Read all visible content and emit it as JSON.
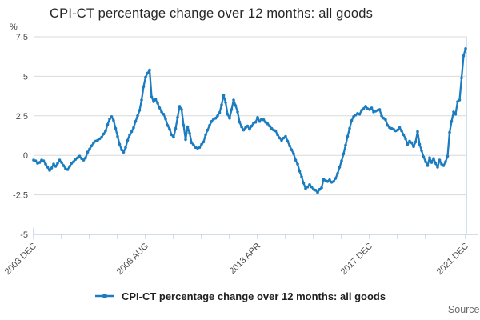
{
  "footer": {
    "source_label": "Source:"
  },
  "chart_data": {
    "type": "line",
    "title": "CPI-CT percentage change over 12 months: all goods",
    "ylabel": "%",
    "xlabel": "",
    "grid": "horizontal",
    "legend_position": "bottom-center",
    "ylim": [
      -5,
      7.5
    ],
    "y_ticks": [
      7.5,
      5,
      2.5,
      0,
      -2.5,
      -5
    ],
    "y_tick_labels": [
      "7.5",
      "5",
      "2.5",
      "0",
      "-2.5",
      "-5"
    ],
    "x_start": "2003 DEC",
    "x_end": "2021 DEC",
    "x_frequency": "monthly",
    "x_labeled_ticks": [
      {
        "month_index": 0,
        "label": "2003 DEC"
      },
      {
        "month_index": 56,
        "label": "2008 AUG"
      },
      {
        "month_index": 112,
        "label": "2013 APR"
      },
      {
        "month_index": 168,
        "label": "2017 DEC"
      },
      {
        "month_index": 216,
        "label": "2021 DEC"
      }
    ],
    "x_minor_tick_month_indices": [
      0,
      14,
      28,
      42,
      56,
      70,
      84,
      98,
      112,
      126,
      140,
      154,
      168,
      182,
      196,
      216
    ],
    "colors": {
      "line": "#1b7cc0",
      "gridline": "#d9d9d9",
      "axis": "#b9c7e0",
      "tick_label": "#4a4a4a",
      "title_text": "#262626",
      "source_text": "#6b6b6b"
    },
    "series": [
      {
        "name": "CPI-CT percentage change over 12 months: all goods",
        "color": "#1b7cc0",
        "start": "2003 DEC",
        "values": [
          -0.3,
          -0.35,
          -0.5,
          -0.45,
          -0.3,
          -0.35,
          -0.55,
          -0.75,
          -0.95,
          -0.8,
          -0.55,
          -0.7,
          -0.5,
          -0.3,
          -0.45,
          -0.65,
          -0.85,
          -0.9,
          -0.7,
          -0.5,
          -0.4,
          -0.25,
          -0.15,
          -0.05,
          -0.2,
          -0.3,
          -0.15,
          0.2,
          0.4,
          0.6,
          0.8,
          0.9,
          0.95,
          1.05,
          1.15,
          1.35,
          1.55,
          1.95,
          2.3,
          2.45,
          2.2,
          1.7,
          1.2,
          0.7,
          0.35,
          0.2,
          0.5,
          0.95,
          1.3,
          1.5,
          1.75,
          2.15,
          2.5,
          2.85,
          3.5,
          4.35,
          4.95,
          5.2,
          5.4,
          3.7,
          3.4,
          3.55,
          3.3,
          3.0,
          2.75,
          2.6,
          2.3,
          1.9,
          1.65,
          1.3,
          1.15,
          1.7,
          2.4,
          3.1,
          2.9,
          1.9,
          1.0,
          1.8,
          1.4,
          0.8,
          0.65,
          0.5,
          0.45,
          0.5,
          0.7,
          0.85,
          1.3,
          1.6,
          1.9,
          2.15,
          2.3,
          2.35,
          2.5,
          2.7,
          3.2,
          3.8,
          3.35,
          2.6,
          2.35,
          2.9,
          3.5,
          3.15,
          2.75,
          2.1,
          1.8,
          1.6,
          1.75,
          1.85,
          1.65,
          1.85,
          2.05,
          2.1,
          2.4,
          2.15,
          2.3,
          2.25,
          2.1,
          2.0,
          1.85,
          1.7,
          1.6,
          1.55,
          1.3,
          1.1,
          0.95,
          1.1,
          1.2,
          0.9,
          0.6,
          0.35,
          0.1,
          -0.3,
          -0.55,
          -1.0,
          -1.35,
          -1.75,
          -2.1,
          -2.0,
          -1.85,
          -2.0,
          -2.15,
          -2.2,
          -2.35,
          -2.15,
          -2.05,
          -1.5,
          -1.6,
          -1.65,
          -1.55,
          -1.7,
          -1.65,
          -1.45,
          -1.15,
          -0.75,
          -0.35,
          0.1,
          0.65,
          1.2,
          1.7,
          2.2,
          2.45,
          2.55,
          2.65,
          2.6,
          2.85,
          2.95,
          3.1,
          2.95,
          2.9,
          3.0,
          2.75,
          2.8,
          2.85,
          2.9,
          2.5,
          2.35,
          2.25,
          1.9,
          1.75,
          1.7,
          1.65,
          1.55,
          1.6,
          1.75,
          1.55,
          1.3,
          1.05,
          0.7,
          0.9,
          0.8,
          0.55,
          0.85,
          1.5,
          0.7,
          0.3,
          -0.1,
          -0.4,
          -0.65,
          -0.15,
          -0.45,
          -0.2,
          -0.5,
          -0.75,
          -0.3,
          -0.55,
          -0.65,
          -0.4,
          -0.05,
          1.45,
          2.15,
          2.75,
          2.6,
          3.4,
          3.5,
          4.9,
          6.3,
          6.75
        ]
      }
    ]
  }
}
